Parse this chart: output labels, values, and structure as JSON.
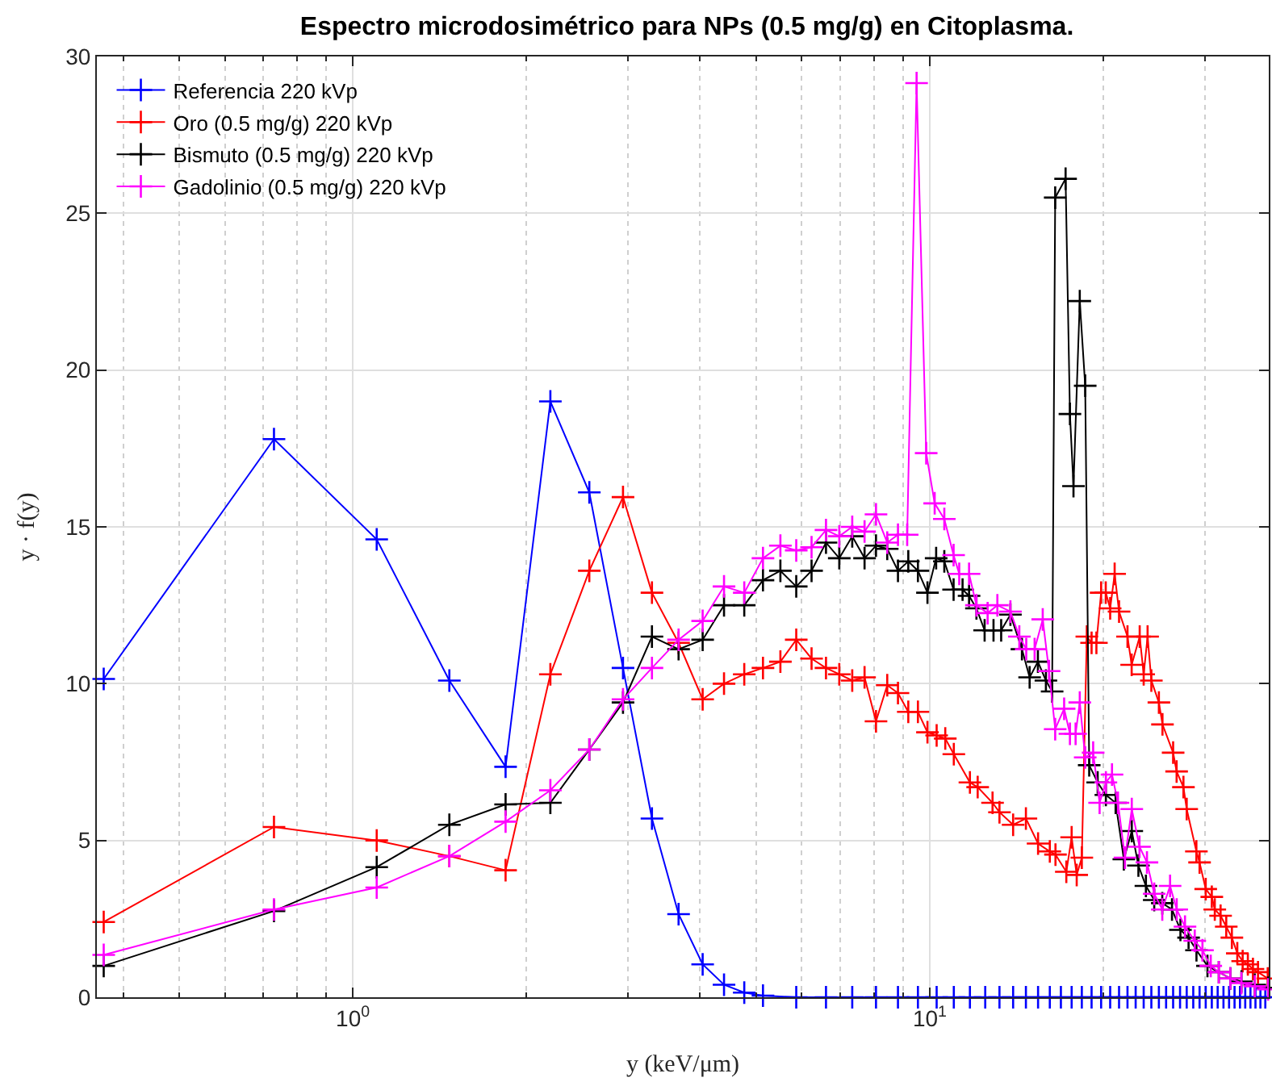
{
  "chart_data": {
    "type": "line",
    "title": "Espectro microdosimétrico para NPs (0.5 mg/g) en Citoplasma.",
    "xlabel": "y (keV/μm)",
    "ylabel": "y · f(y)",
    "log": "x",
    "xlim": [
      0.36,
      38.7
    ],
    "ylim": [
      0,
      30
    ],
    "xticks": [
      {
        "value": 0.4,
        "label": null
      },
      {
        "value": 0.5,
        "label": null
      },
      {
        "value": 0.6,
        "label": null
      },
      {
        "value": 0.7,
        "label": null
      },
      {
        "value": 0.8,
        "label": null
      },
      {
        "value": 0.9,
        "label": null
      },
      {
        "value": 1,
        "label": "10$^{0}$"
      },
      {
        "value": 2,
        "label": null
      },
      {
        "value": 3,
        "label": null
      },
      {
        "value": 4,
        "label": null
      },
      {
        "value": 5,
        "label": null
      },
      {
        "value": 6,
        "label": null
      },
      {
        "value": 7,
        "label": null
      },
      {
        "value": 8,
        "label": null
      },
      {
        "value": 9,
        "label": null
      },
      {
        "value": 10,
        "label": "10$^{1}$"
      },
      {
        "value": 20,
        "label": null
      },
      {
        "value": 30,
        "label": null
      }
    ],
    "yticks": [
      0,
      5,
      10,
      15,
      20,
      25,
      30
    ],
    "grid": true,
    "legend": "top left",
    "marker": "cross",
    "line_style": "solid",
    "series": [
      {
        "name": "Referencia 220 kVp",
        "color": "#0000ff",
        "x": [
          0.37,
          0.73,
          1.1,
          1.47,
          1.84,
          2.2,
          2.57,
          2.94,
          3.3,
          3.67,
          4.04,
          4.4,
          4.77,
          5.14,
          5.87,
          6.61,
          7.34,
          8.07,
          8.81,
          9.54,
          10.28,
          11.01,
          11.74,
          12.48,
          13.21,
          13.95,
          14.68,
          15.41,
          16.15,
          16.88,
          17.62,
          18.35,
          19.08,
          19.82,
          20.55,
          21.29,
          22.02,
          22.75,
          23.49,
          24.22,
          24.96,
          25.69,
          26.42,
          27.16,
          27.89,
          28.63,
          29.36,
          30.09,
          30.83,
          31.56,
          32.3,
          33.03,
          33.76,
          34.5,
          35.23,
          35.97,
          36.7,
          37.43,
          38.17
        ],
        "values": [
          10.15,
          17.8,
          14.6,
          10.1,
          7.35,
          19.0,
          16.1,
          10.5,
          5.7,
          2.65,
          1.05,
          0.4,
          0.15,
          0.05,
          0,
          0,
          0,
          0,
          0,
          0,
          0,
          0,
          0,
          0,
          0,
          0,
          0,
          0,
          0,
          0,
          0,
          0,
          0,
          0,
          0,
          0,
          0,
          0,
          0,
          0,
          0,
          0,
          0,
          0,
          0,
          0,
          0,
          0,
          0,
          0,
          0,
          0,
          0,
          0,
          0,
          0,
          0,
          0,
          0
        ]
      },
      {
        "name": "Oro (0.5 mg/g) 220 kVp",
        "color": "#ff0000",
        "x": [
          0.37,
          0.73,
          1.1,
          1.47,
          1.84,
          2.2,
          2.57,
          2.94,
          3.3,
          3.67,
          4.04,
          4.4,
          4.77,
          5.14,
          5.51,
          5.87,
          6.24,
          6.61,
          6.97,
          7.34,
          7.71,
          8.07,
          8.44,
          8.81,
          9.18,
          9.54,
          9.91,
          10.28,
          10.64,
          11.01,
          11.74,
          12.11,
          12.85,
          13.21,
          13.95,
          14.68,
          15.41,
          16.15,
          16.52,
          17.25,
          17.62,
          17.98,
          18.35,
          18.72,
          19.08,
          19.45,
          19.82,
          20.19,
          20.55,
          20.92,
          21.29,
          22.02,
          22.39,
          23.12,
          23.49,
          23.86,
          24.22,
          24.96,
          25.32,
          26.42,
          26.79,
          27.53,
          27.89,
          28.99,
          29.36,
          30.09,
          30.83,
          31.2,
          31.93,
          32.66,
          33.4,
          34.13,
          34.87,
          35.6,
          36.33,
          37.07,
          38.54
        ],
        "values": [
          2.4,
          5.43,
          5.0,
          4.5,
          4.05,
          10.3,
          13.6,
          15.95,
          12.9,
          11.3,
          9.5,
          10.0,
          10.3,
          10.5,
          10.7,
          11.4,
          10.8,
          10.5,
          10.3,
          10.1,
          10.2,
          8.8,
          9.95,
          9.7,
          9.1,
          9.1,
          8.45,
          8.35,
          8.25,
          7.75,
          6.85,
          6.7,
          6.2,
          5.9,
          5.5,
          5.7,
          4.9,
          4.65,
          4.55,
          4.0,
          5.1,
          3.9,
          4.45,
          11.5,
          11.3,
          11.3,
          12.9,
          12.9,
          12.4,
          13.5,
          12.3,
          11.5,
          10.6,
          11.5,
          10.3,
          11.5,
          10.1,
          9.4,
          8.7,
          7.8,
          7.2,
          6.7,
          6.0,
          4.65,
          4.3,
          3.45,
          3.2,
          2.8,
          2.6,
          2.25,
          1.9,
          1.4,
          1.15,
          1.05,
          0.9,
          0.8,
          0.6
        ]
      },
      {
        "name": "Bismuto (0.5 mg/g) 220 kVp",
        "color": "#000000",
        "x": [
          0.37,
          0.73,
          1.1,
          1.47,
          1.84,
          2.2,
          2.57,
          2.94,
          3.3,
          3.67,
          4.04,
          4.4,
          4.77,
          5.14,
          5.51,
          5.87,
          6.24,
          6.61,
          6.97,
          7.34,
          7.71,
          8.07,
          8.44,
          8.81,
          9.18,
          9.54,
          9.91,
          10.26,
          10.6,
          11.0,
          11.4,
          11.7,
          12.05,
          12.45,
          12.9,
          13.3,
          13.8,
          14.45,
          14.9,
          15.4,
          15.9,
          16.3,
          16.5,
          17.2,
          17.5,
          17.75,
          18.2,
          18.6,
          18.9,
          19.55,
          20.2,
          21.0,
          21.7,
          22.4,
          23.0,
          23.7,
          24.5,
          25.3,
          26.3,
          27.2,
          28.1,
          29.0,
          30.3,
          31.7,
          33.2,
          34.7,
          36.6,
          38.6
        ],
        "values": [
          1.0,
          2.75,
          4.15,
          5.5,
          6.15,
          6.2,
          7.9,
          9.4,
          11.5,
          11.1,
          11.4,
          12.5,
          12.5,
          13.3,
          13.6,
          13.1,
          13.6,
          14.5,
          14.0,
          14.7,
          14.0,
          14.4,
          14.3,
          13.6,
          13.9,
          13.6,
          12.9,
          14.0,
          13.9,
          13.0,
          13.0,
          12.8,
          12.4,
          11.7,
          11.7,
          11.7,
          12.2,
          11.1,
          10.2,
          10.7,
          10.1,
          9.75,
          25.5,
          26.1,
          18.6,
          16.3,
          22.2,
          19.5,
          7.4,
          6.85,
          6.45,
          6.2,
          4.4,
          5.3,
          4.2,
          3.55,
          3.1,
          3.0,
          2.8,
          2.15,
          1.9,
          1.5,
          1.0,
          0.8,
          0.6,
          0.5,
          0.4,
          0.3
        ]
      },
      {
        "name": "Gadolinio (0.5 mg/g) 220 kVp",
        "color": "#ff00ff",
        "x": [
          0.37,
          0.73,
          1.1,
          1.47,
          1.84,
          2.2,
          2.57,
          2.94,
          3.3,
          3.67,
          4.04,
          4.4,
          4.77,
          5.14,
          5.51,
          5.87,
          6.24,
          6.61,
          6.97,
          7.34,
          7.71,
          8.07,
          8.44,
          8.81,
          9.14,
          9.49,
          9.86,
          10.2,
          10.6,
          11.0,
          11.25,
          11.7,
          12.05,
          12.6,
          13.1,
          13.8,
          14.3,
          14.7,
          15.2,
          15.7,
          16.1,
          16.5,
          17.1,
          17.5,
          17.9,
          18.2,
          18.6,
          19.2,
          19.7,
          20.2,
          20.7,
          21.2,
          21.8,
          22.4,
          23.1,
          23.8,
          24.5,
          25.3,
          26.1,
          26.8,
          27.7,
          28.8,
          29.7,
          30.7,
          31.7,
          33.2,
          34.7,
          36.6,
          38.6
        ],
        "values": [
          1.35,
          2.8,
          3.5,
          4.5,
          5.6,
          6.6,
          7.9,
          9.5,
          10.5,
          11.4,
          12.0,
          13.1,
          12.9,
          14.0,
          14.4,
          14.25,
          14.35,
          14.9,
          14.7,
          15.0,
          14.85,
          15.4,
          14.5,
          14.75,
          14.75,
          29.15,
          17.35,
          15.75,
          15.25,
          14.1,
          13.5,
          13.5,
          12.5,
          12.25,
          12.5,
          12.3,
          11.5,
          11.1,
          11.1,
          12.05,
          10.4,
          8.55,
          9.2,
          8.4,
          8.4,
          9.4,
          7.65,
          7.8,
          6.2,
          6.85,
          7.1,
          6.2,
          4.45,
          6.0,
          4.8,
          4.3,
          3.3,
          2.8,
          3.55,
          2.8,
          2.25,
          1.8,
          1.5,
          1.0,
          0.8,
          0.6,
          0.45,
          0.35,
          0.25
        ]
      }
    ]
  }
}
